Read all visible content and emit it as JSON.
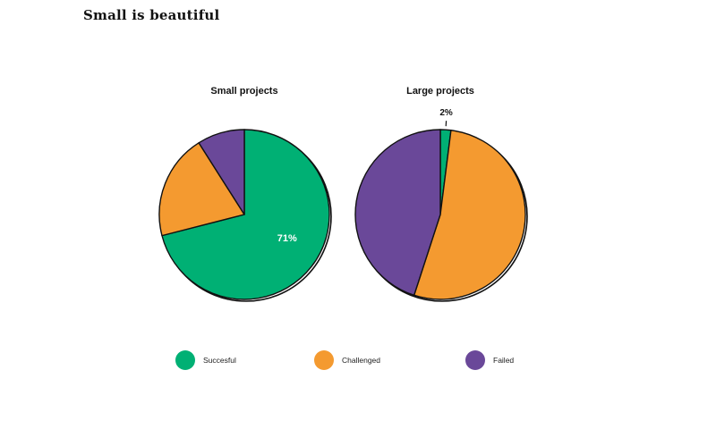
{
  "page": {
    "title": "Small is beautiful"
  },
  "colors": {
    "successful": "#00b074",
    "challenged": "#f49a30",
    "failed": "#6a4899",
    "outline": "#111111"
  },
  "legend": [
    {
      "label": "Succesful",
      "color": "#00b074"
    },
    {
      "label": "Challenged",
      "color": "#f49a30"
    },
    {
      "label": "Failed",
      "color": "#6a4899"
    }
  ],
  "chart_data": [
    {
      "type": "pie",
      "title": "Small projects",
      "categories": [
        "Succesful",
        "Challenged",
        "Failed"
      ],
      "values": [
        71,
        20,
        9
      ],
      "data_labels": [
        "71%",
        "",
        ""
      ]
    },
    {
      "type": "pie",
      "title": "Large projects",
      "categories": [
        "Succesful",
        "Challenged",
        "Failed"
      ],
      "values": [
        2,
        53,
        45
      ],
      "data_labels": [
        "2%",
        "",
        ""
      ]
    }
  ]
}
